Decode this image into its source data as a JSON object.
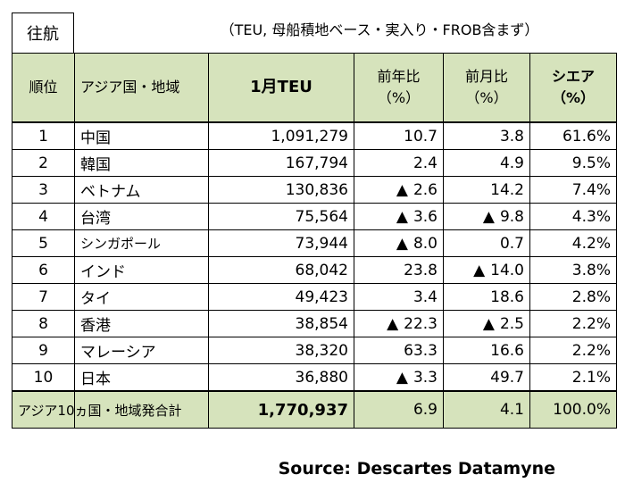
{
  "tag": "往航",
  "unit_note": "（TEU, 母船積地ベース・実入り・FROB含まず）",
  "headers": {
    "rank": "順位",
    "region": "アジア国・地域",
    "teu": "1月TEU",
    "yoy_line1": "前年比",
    "yoy_line2": "（%）",
    "mom_line1": "前月比",
    "mom_line2": "（%）",
    "share_line1": "シエア",
    "share_line2": "（%）"
  },
  "rows": [
    {
      "rank": "1",
      "region": "中国",
      "teu": "1,091,279",
      "yoy": "10.7",
      "yoy_neg": false,
      "mom": "3.8",
      "mom_neg": false,
      "share": "61.6%"
    },
    {
      "rank": "2",
      "region": "韓国",
      "teu": "167,794",
      "yoy": "2.4",
      "yoy_neg": false,
      "mom": "4.9",
      "mom_neg": false,
      "share": "9.5%"
    },
    {
      "rank": "3",
      "region": "ベトナム",
      "teu": "130,836",
      "yoy": "2.6",
      "yoy_neg": true,
      "mom": "14.2",
      "mom_neg": false,
      "share": "7.4%"
    },
    {
      "rank": "4",
      "region": "台湾",
      "teu": "75,564",
      "yoy": "3.6",
      "yoy_neg": true,
      "mom": "9.8",
      "mom_neg": true,
      "share": "4.3%"
    },
    {
      "rank": "5",
      "region": "シンガポール",
      "teu": "73,944",
      "yoy": "8.0",
      "yoy_neg": true,
      "mom": "0.7",
      "mom_neg": false,
      "share": "4.2%"
    },
    {
      "rank": "6",
      "region": "インド",
      "teu": "68,042",
      "yoy": "23.8",
      "yoy_neg": false,
      "mom": "14.0",
      "mom_neg": true,
      "share": "3.8%"
    },
    {
      "rank": "7",
      "region": "タイ",
      "teu": "49,423",
      "yoy": "3.4",
      "yoy_neg": false,
      "mom": "18.6",
      "mom_neg": false,
      "share": "2.8%"
    },
    {
      "rank": "8",
      "region": "香港",
      "teu": "38,854",
      "yoy": "22.3",
      "yoy_neg": true,
      "mom": "2.5",
      "mom_neg": true,
      "share": "2.2%"
    },
    {
      "rank": "9",
      "region": "マレーシア",
      "teu": "38,320",
      "yoy": "63.3",
      "yoy_neg": false,
      "mom": "16.6",
      "mom_neg": false,
      "share": "2.2%"
    },
    {
      "rank": "10",
      "region": "日本",
      "teu": "36,880",
      "yoy": "3.3",
      "yoy_neg": true,
      "mom": "49.7",
      "mom_neg": false,
      "share": "2.1%"
    }
  ],
  "negative_marker": "▲",
  "total": {
    "label": "アジア10ヵ国・地域発合計",
    "teu": "1,770,937",
    "yoy": "6.9",
    "mom": "4.1",
    "share": "100.0%"
  },
  "source": "Source: Descartes Datamyne",
  "colors": {
    "header_bg": "#d6e3bc"
  }
}
